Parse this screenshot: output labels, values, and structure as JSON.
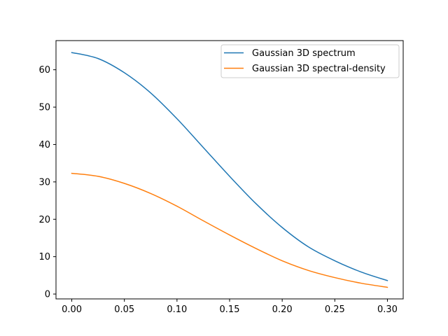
{
  "chart_data": {
    "type": "line",
    "title": "",
    "xlabel": "",
    "ylabel": "",
    "xlim": [
      -0.015,
      0.315
    ],
    "ylim": [
      -1.3,
      67.8
    ],
    "grid": false,
    "legend_position": "top-right",
    "x_ticks": [
      {
        "value": 0.0,
        "label": "0.00"
      },
      {
        "value": 0.05,
        "label": "0.05"
      },
      {
        "value": 0.1,
        "label": "0.10"
      },
      {
        "value": 0.15,
        "label": "0.15"
      },
      {
        "value": 0.2,
        "label": "0.20"
      },
      {
        "value": 0.25,
        "label": "0.25"
      },
      {
        "value": 0.3,
        "label": "0.30"
      }
    ],
    "y_ticks": [
      {
        "value": 0,
        "label": "0"
      },
      {
        "value": 10,
        "label": "10"
      },
      {
        "value": 20,
        "label": "20"
      },
      {
        "value": 30,
        "label": "30"
      },
      {
        "value": 40,
        "label": "40"
      },
      {
        "value": 50,
        "label": "50"
      },
      {
        "value": 60,
        "label": "60"
      }
    ],
    "x": [
      0.0,
      0.025,
      0.05,
      0.075,
      0.1,
      0.125,
      0.15,
      0.175,
      0.2,
      0.225,
      0.25,
      0.275,
      0.3
    ],
    "series": [
      {
        "name": "Gaussian 3D spectrum",
        "color": "#1f77b4",
        "values": [
          64.6,
          63.0,
          59.2,
          53.8,
          46.9,
          39.2,
          31.5,
          24.2,
          17.8,
          12.6,
          8.9,
          5.9,
          3.6
        ]
      },
      {
        "name": "Gaussian 3D spectral-density",
        "color": "#ff7f0e",
        "values": [
          32.3,
          31.5,
          29.6,
          26.9,
          23.5,
          19.6,
          15.8,
          12.2,
          8.9,
          6.3,
          4.4,
          2.9,
          1.8
        ]
      }
    ]
  }
}
